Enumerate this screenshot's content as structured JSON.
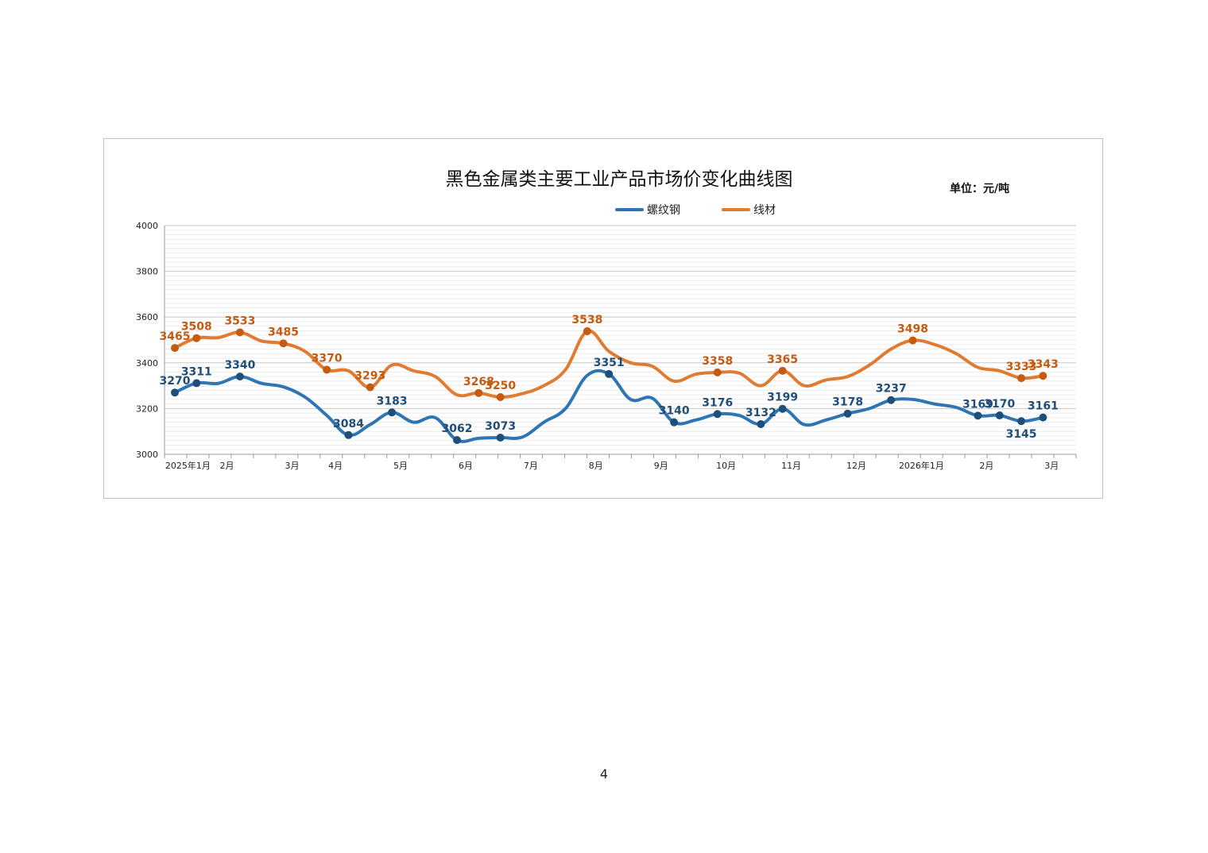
{
  "page": {
    "page_number": "4"
  },
  "chart_data": {
    "type": "line",
    "title": "黑色金属类主要工业产品市场价变化曲线图",
    "unit": "单位：元/吨",
    "xlabel": "",
    "ylabel": "",
    "ylim": [
      3000,
      4000
    ],
    "yticks": [
      3000,
      3200,
      3400,
      3600,
      3800,
      4000
    ],
    "grid": true,
    "legend_position": "top-center",
    "x_tick_labels": [
      {
        "x": 0.6,
        "label": "2025年1月"
      },
      {
        "x": 2.4,
        "label": "2月"
      },
      {
        "x": 5.4,
        "label": "3月"
      },
      {
        "x": 7.4,
        "label": "4月"
      },
      {
        "x": 10.4,
        "label": "5月"
      },
      {
        "x": 13.4,
        "label": "6月"
      },
      {
        "x": 16.4,
        "label": "7月"
      },
      {
        "x": 19.4,
        "label": "8月"
      },
      {
        "x": 22.4,
        "label": "9月"
      },
      {
        "x": 25.4,
        "label": "10月"
      },
      {
        "x": 28.4,
        "label": "11月"
      },
      {
        "x": 31.4,
        "label": "12月"
      },
      {
        "x": 34.4,
        "label": "2026年1月"
      },
      {
        "x": 37.4,
        "label": "2月"
      },
      {
        "x": 40.4,
        "label": "3月"
      }
    ],
    "series": [
      {
        "name": "螺纹钢",
        "color": "#2e75b6",
        "marker_color": "#1f4e79",
        "label_color": "#1f4e79",
        "points": [
          [
            0,
            3270
          ],
          [
            1,
            3311
          ],
          [
            2,
            3310
          ],
          [
            3,
            3340
          ],
          [
            4,
            3310
          ],
          [
            5,
            3295
          ],
          [
            6,
            3250
          ],
          [
            7,
            3170
          ],
          [
            8,
            3084
          ],
          [
            9,
            3130
          ],
          [
            10,
            3183
          ],
          [
            11,
            3140
          ],
          [
            12,
            3160
          ],
          [
            13,
            3062
          ],
          [
            14,
            3070
          ],
          [
            15,
            3073
          ],
          [
            16,
            3075
          ],
          [
            17,
            3140
          ],
          [
            18,
            3200
          ],
          [
            19,
            3345
          ],
          [
            20,
            3351
          ],
          [
            21,
            3240
          ],
          [
            22,
            3245
          ],
          [
            23,
            3140
          ],
          [
            24,
            3150
          ],
          [
            25,
            3176
          ],
          [
            26,
            3170
          ],
          [
            27,
            3132
          ],
          [
            28,
            3199
          ],
          [
            29,
            3130
          ],
          [
            30,
            3150
          ],
          [
            31,
            3178
          ],
          [
            32,
            3200
          ],
          [
            33,
            3237
          ],
          [
            34,
            3240
          ],
          [
            35,
            3220
          ],
          [
            36,
            3205
          ],
          [
            37,
            3169
          ],
          [
            38,
            3170
          ],
          [
            39,
            3145
          ],
          [
            40,
            3161
          ]
        ],
        "labeled": [
          {
            "i": 0,
            "text": "3270"
          },
          {
            "i": 1,
            "text": "3311"
          },
          {
            "i": 3,
            "text": "3340"
          },
          {
            "i": 8,
            "text": "3084"
          },
          {
            "i": 10,
            "text": "3183"
          },
          {
            "i": 13,
            "text": "3062"
          },
          {
            "i": 15,
            "text": "3073"
          },
          {
            "i": 20,
            "text": "3351"
          },
          {
            "i": 23,
            "text": "3140"
          },
          {
            "i": 25,
            "text": "3176"
          },
          {
            "i": 27,
            "text": "3132"
          },
          {
            "i": 28,
            "text": "3199"
          },
          {
            "i": 31,
            "text": "3178"
          },
          {
            "i": 33,
            "text": "3237"
          },
          {
            "i": 37,
            "text": "3169"
          },
          {
            "i": 38,
            "text": "3170"
          },
          {
            "i": 39,
            "text": "3145"
          },
          {
            "i": 40,
            "text": "3161"
          }
        ]
      },
      {
        "name": "线材",
        "color": "#e07b31",
        "marker_color": "#c55a11",
        "label_color": "#c55a11",
        "points": [
          [
            0,
            3465
          ],
          [
            1,
            3508
          ],
          [
            2,
            3510
          ],
          [
            3,
            3533
          ],
          [
            4,
            3495
          ],
          [
            5,
            3485
          ],
          [
            6,
            3450
          ],
          [
            7,
            3370
          ],
          [
            8,
            3365
          ],
          [
            9,
            3293
          ],
          [
            10,
            3390
          ],
          [
            11,
            3365
          ],
          [
            12,
            3340
          ],
          [
            13,
            3260
          ],
          [
            14,
            3268
          ],
          [
            15,
            3250
          ],
          [
            16,
            3265
          ],
          [
            17,
            3300
          ],
          [
            18,
            3370
          ],
          [
            19,
            3538
          ],
          [
            20,
            3450
          ],
          [
            21,
            3400
          ],
          [
            22,
            3385
          ],
          [
            23,
            3320
          ],
          [
            24,
            3350
          ],
          [
            25,
            3358
          ],
          [
            26,
            3355
          ],
          [
            27,
            3300
          ],
          [
            28,
            3365
          ],
          [
            29,
            3300
          ],
          [
            30,
            3325
          ],
          [
            31,
            3340
          ],
          [
            32,
            3390
          ],
          [
            33,
            3460
          ],
          [
            34,
            3498
          ],
          [
            35,
            3480
          ],
          [
            36,
            3440
          ],
          [
            37,
            3380
          ],
          [
            38,
            3365
          ],
          [
            39,
            3333
          ],
          [
            40,
            3343
          ]
        ],
        "labeled": [
          {
            "i": 0,
            "text": "3465"
          },
          {
            "i": 1,
            "text": "3508"
          },
          {
            "i": 3,
            "text": "3533"
          },
          {
            "i": 5,
            "text": "3485"
          },
          {
            "i": 7,
            "text": "3370"
          },
          {
            "i": 9,
            "text": "3293"
          },
          {
            "i": 14,
            "text": "3268"
          },
          {
            "i": 15,
            "text": "3250"
          },
          {
            "i": 19,
            "text": "3538"
          },
          {
            "i": 25,
            "text": "3358"
          },
          {
            "i": 28,
            "text": "3365"
          },
          {
            "i": 34,
            "text": "3498"
          },
          {
            "i": 39,
            "text": "3333"
          },
          {
            "i": 40,
            "text": "3343"
          }
        ]
      }
    ]
  }
}
